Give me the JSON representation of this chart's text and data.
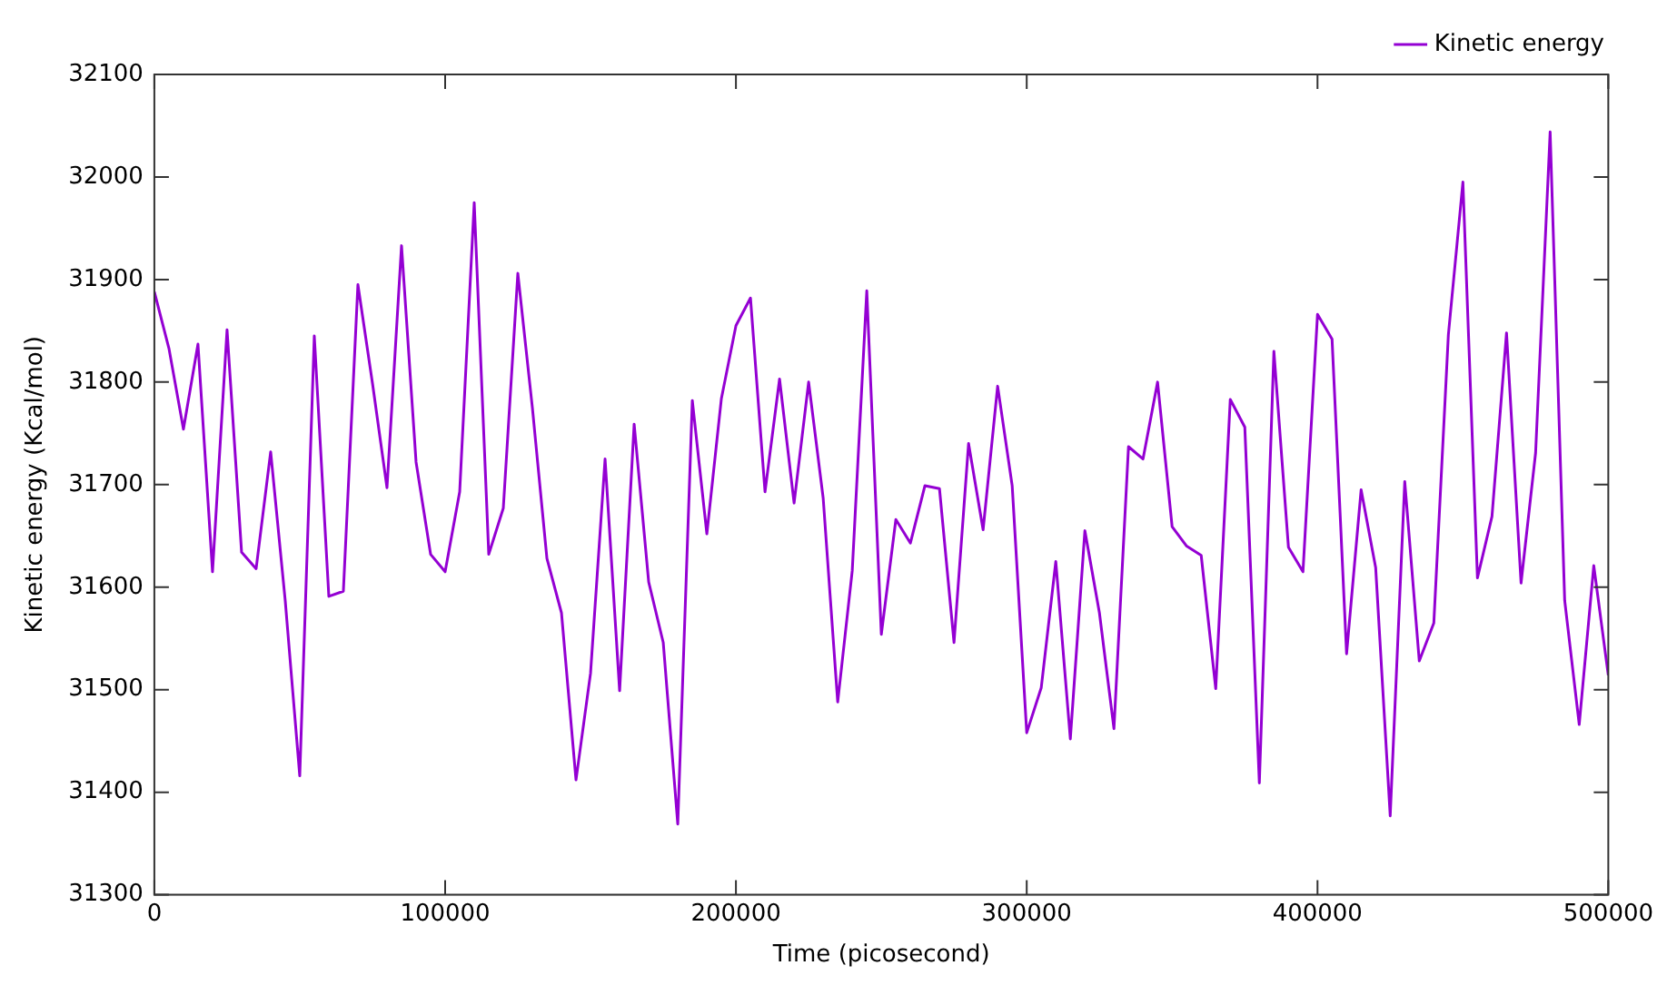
{
  "chart_data": {
    "type": "line",
    "xlabel": "Time (picosecond)",
    "ylabel": "Kinetic energy (Kcal/mol)",
    "x": [
      0,
      5000,
      10000,
      15000,
      20000,
      25000,
      30000,
      35000,
      40000,
      45000,
      50000,
      55000,
      60000,
      65000,
      70000,
      75000,
      80000,
      85000,
      90000,
      95000,
      100000,
      105000,
      110000,
      115000,
      120000,
      125000,
      130000,
      135000,
      140000,
      145000,
      150000,
      155000,
      160000,
      165000,
      170000,
      175000,
      180000,
      185000,
      190000,
      195000,
      200000,
      205000,
      210000,
      215000,
      220000,
      225000,
      230000,
      235000,
      240000,
      245000,
      250000,
      255000,
      260000,
      265000,
      270000,
      275000,
      280000,
      285000,
      290000,
      295000,
      300000,
      305000,
      310000,
      315000,
      320000,
      325000,
      330000,
      335000,
      340000,
      345000,
      350000,
      355000,
      360000,
      365000,
      370000,
      375000,
      380000,
      385000,
      390000,
      395000,
      400000,
      405000,
      410000,
      415000,
      420000,
      425000,
      430000,
      435000,
      440000,
      445000,
      450000,
      455000,
      460000,
      465000,
      470000,
      475000,
      480000,
      485000,
      490000,
      495000,
      500000
    ],
    "series": [
      {
        "name": "Kinetic energy",
        "color": "#9400d3",
        "values": [
          31888,
          31833,
          31754,
          31837,
          31615,
          31851,
          31634,
          31618,
          31732,
          31587,
          31416,
          31845,
          31591,
          31596,
          31895,
          31799,
          31697,
          31933,
          31722,
          31632,
          31615,
          31693,
          31975,
          31632,
          31677,
          31906,
          31775,
          31628,
          31575,
          31412,
          31516,
          31725,
          31499,
          31759,
          31605,
          31546,
          31369,
          31782,
          31652,
          31784,
          31855,
          31882,
          31693,
          31803,
          31682,
          31800,
          31687,
          31488,
          31616,
          31889,
          31554,
          31666,
          31643,
          31699,
          31696,
          31546,
          31740,
          31656,
          31796,
          31699,
          31458,
          31502,
          31625,
          31452,
          31655,
          31575,
          31462,
          31737,
          31725,
          31800,
          31659,
          31640,
          31631,
          31501,
          31783,
          31756,
          31409,
          31830,
          31639,
          31615,
          31866,
          31842,
          31535,
          31695,
          31619,
          31377,
          31703,
          31528,
          31565,
          31846,
          31995,
          31609,
          31669,
          31848,
          31604,
          31731,
          32044,
          31587,
          31466,
          31621,
          31514
        ]
      }
    ],
    "xlim": [
      0,
      500000
    ],
    "xticks": [
      0,
      100000,
      200000,
      300000,
      400000,
      500000
    ],
    "ylim": [
      31300,
      32100
    ],
    "yticks": [
      31300,
      31400,
      31500,
      31600,
      31700,
      31800,
      31900,
      32000,
      32100
    ],
    "grid": false,
    "legend": "top right",
    "marker": "none",
    "line_style": "solid"
  }
}
